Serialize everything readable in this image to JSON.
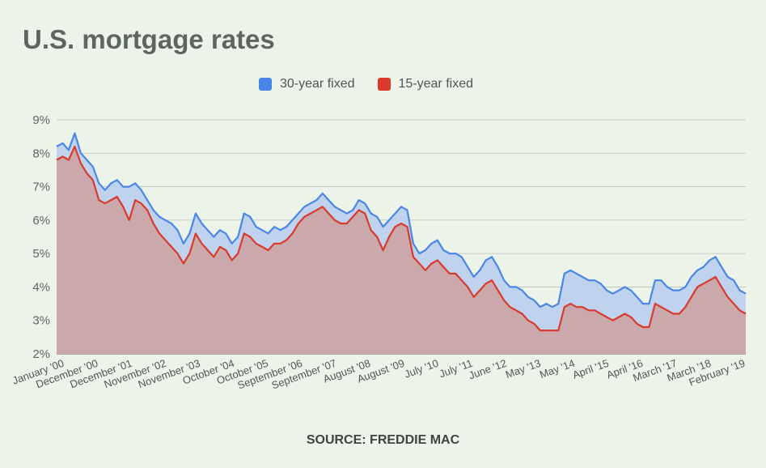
{
  "title": "U.S. mortgage rates",
  "source": "SOURCE: FREDDIE MAC",
  "chart_data": {
    "type": "area",
    "ylim": [
      2,
      9
    ],
    "y_ticks": [
      "2%",
      "3%",
      "4%",
      "5%",
      "6%",
      "7%",
      "8%",
      "9%"
    ],
    "x_tick_labels": [
      "January '00",
      "December '00",
      "December '01",
      "November '02",
      "November '03",
      "October '04",
      "October '05",
      "September '06",
      "September '07",
      "August '08",
      "August '09",
      "July '10",
      "July '11",
      "June '12",
      "May '13",
      "May '14",
      "April '15",
      "April '16",
      "March '17",
      "March '18",
      "February '19"
    ],
    "grid": true,
    "legend_position": "top-center",
    "series": [
      {
        "name": "30-year fixed",
        "color": "#4a86e8",
        "fill": "#bfd3ee",
        "values": [
          8.2,
          8.3,
          8.1,
          8.6,
          8.0,
          7.8,
          7.6,
          7.1,
          6.9,
          7.1,
          7.2,
          7.0,
          7.0,
          7.1,
          6.9,
          6.6,
          6.3,
          6.1,
          6.0,
          5.9,
          5.7,
          5.3,
          5.6,
          6.2,
          5.9,
          5.7,
          5.5,
          5.7,
          5.6,
          5.3,
          5.5,
          6.2,
          6.1,
          5.8,
          5.7,
          5.6,
          5.8,
          5.7,
          5.8,
          6.0,
          6.2,
          6.4,
          6.5,
          6.6,
          6.8,
          6.6,
          6.4,
          6.3,
          6.2,
          6.3,
          6.6,
          6.5,
          6.2,
          6.1,
          5.8,
          6.0,
          6.2,
          6.4,
          6.3,
          5.3,
          5.0,
          5.1,
          5.3,
          5.4,
          5.1,
          5.0,
          5.0,
          4.9,
          4.6,
          4.3,
          4.5,
          4.8,
          4.9,
          4.6,
          4.2,
          4.0,
          4.0,
          3.9,
          3.7,
          3.6,
          3.4,
          3.5,
          3.4,
          3.5,
          4.4,
          4.5,
          4.4,
          4.3,
          4.2,
          4.2,
          4.1,
          3.9,
          3.8,
          3.9,
          4.0,
          3.9,
          3.7,
          3.5,
          3.5,
          4.2,
          4.2,
          4.0,
          3.9,
          3.9,
          4.0,
          4.3,
          4.5,
          4.6,
          4.8,
          4.9,
          4.6,
          4.3,
          4.2,
          3.9,
          3.8
        ]
      },
      {
        "name": "15-year fixed",
        "color": "#d93a2b",
        "fill": "#caa8ac",
        "values": [
          7.8,
          7.9,
          7.8,
          8.2,
          7.7,
          7.4,
          7.2,
          6.6,
          6.5,
          6.6,
          6.7,
          6.4,
          6.0,
          6.6,
          6.5,
          6.3,
          5.9,
          5.6,
          5.4,
          5.2,
          5.0,
          4.7,
          5.0,
          5.6,
          5.3,
          5.1,
          4.9,
          5.2,
          5.1,
          4.8,
          5.0,
          5.6,
          5.5,
          5.3,
          5.2,
          5.1,
          5.3,
          5.3,
          5.4,
          5.6,
          5.9,
          6.1,
          6.2,
          6.3,
          6.4,
          6.2,
          6.0,
          5.9,
          5.9,
          6.1,
          6.3,
          6.2,
          5.7,
          5.5,
          5.1,
          5.5,
          5.8,
          5.9,
          5.8,
          4.9,
          4.7,
          4.5,
          4.7,
          4.8,
          4.6,
          4.4,
          4.4,
          4.2,
          4.0,
          3.7,
          3.9,
          4.1,
          4.2,
          3.9,
          3.6,
          3.4,
          3.3,
          3.2,
          3.0,
          2.9,
          2.7,
          2.7,
          2.7,
          2.7,
          3.4,
          3.5,
          3.4,
          3.4,
          3.3,
          3.3,
          3.2,
          3.1,
          3.0,
          3.1,
          3.2,
          3.1,
          2.9,
          2.8,
          2.8,
          3.5,
          3.4,
          3.3,
          3.2,
          3.2,
          3.4,
          3.7,
          4.0,
          4.1,
          4.2,
          4.3,
          4.0,
          3.7,
          3.5,
          3.3,
          3.2
        ]
      }
    ]
  }
}
